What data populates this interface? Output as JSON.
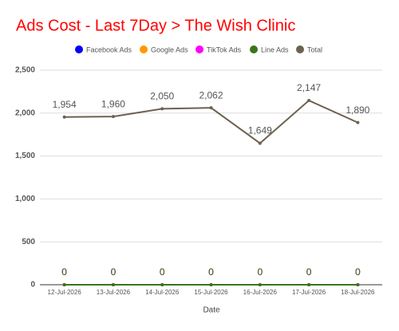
{
  "chart_data": {
    "type": "line",
    "title": "Ads Cost - Last 7Day > The Wish Clinic",
    "x_label": "Date",
    "categories": [
      "12-Jul-2026",
      "13-Jul-2026",
      "14-Jul-2026",
      "15-Jul-2026",
      "16-Jul-2026",
      "17-Jul-2026",
      "18-Jul-2026"
    ],
    "series": [
      {
        "name": "Facebook Ads",
        "color": "#0000ff",
        "values": [
          0,
          0,
          0,
          0,
          0,
          0,
          0
        ]
      },
      {
        "name": "Google Ads",
        "color": "#ff9900",
        "values": [
          0,
          0,
          0,
          0,
          0,
          0,
          0
        ]
      },
      {
        "name": "TikTok Ads",
        "color": "#ff00ff",
        "values": [
          0,
          0,
          0,
          0,
          0,
          0,
          0
        ]
      },
      {
        "name": "Line Ads",
        "color": "#38761d",
        "values": [
          0,
          0,
          0,
          0,
          0,
          0,
          0
        ]
      },
      {
        "name": "Total",
        "color": "#6d6150",
        "values": [
          1954,
          1960,
          2050,
          2062,
          1649,
          2147,
          1890
        ],
        "value_labels": [
          "1,954",
          "1,960",
          "2,050",
          "2,062",
          "1,649",
          "2,147",
          "1,890"
        ]
      }
    ],
    "ylim": [
      0,
      2500
    ],
    "yticks": [
      0,
      500,
      {
        "value": 1000,
        "label": "1,000"
      },
      {
        "value": 1500,
        "label": "1,500"
      },
      {
        "value": 2000,
        "label": "2,000"
      },
      {
        "value": 2500,
        "label": "2,500"
      }
    ],
    "grid": true,
    "legend": "top"
  }
}
